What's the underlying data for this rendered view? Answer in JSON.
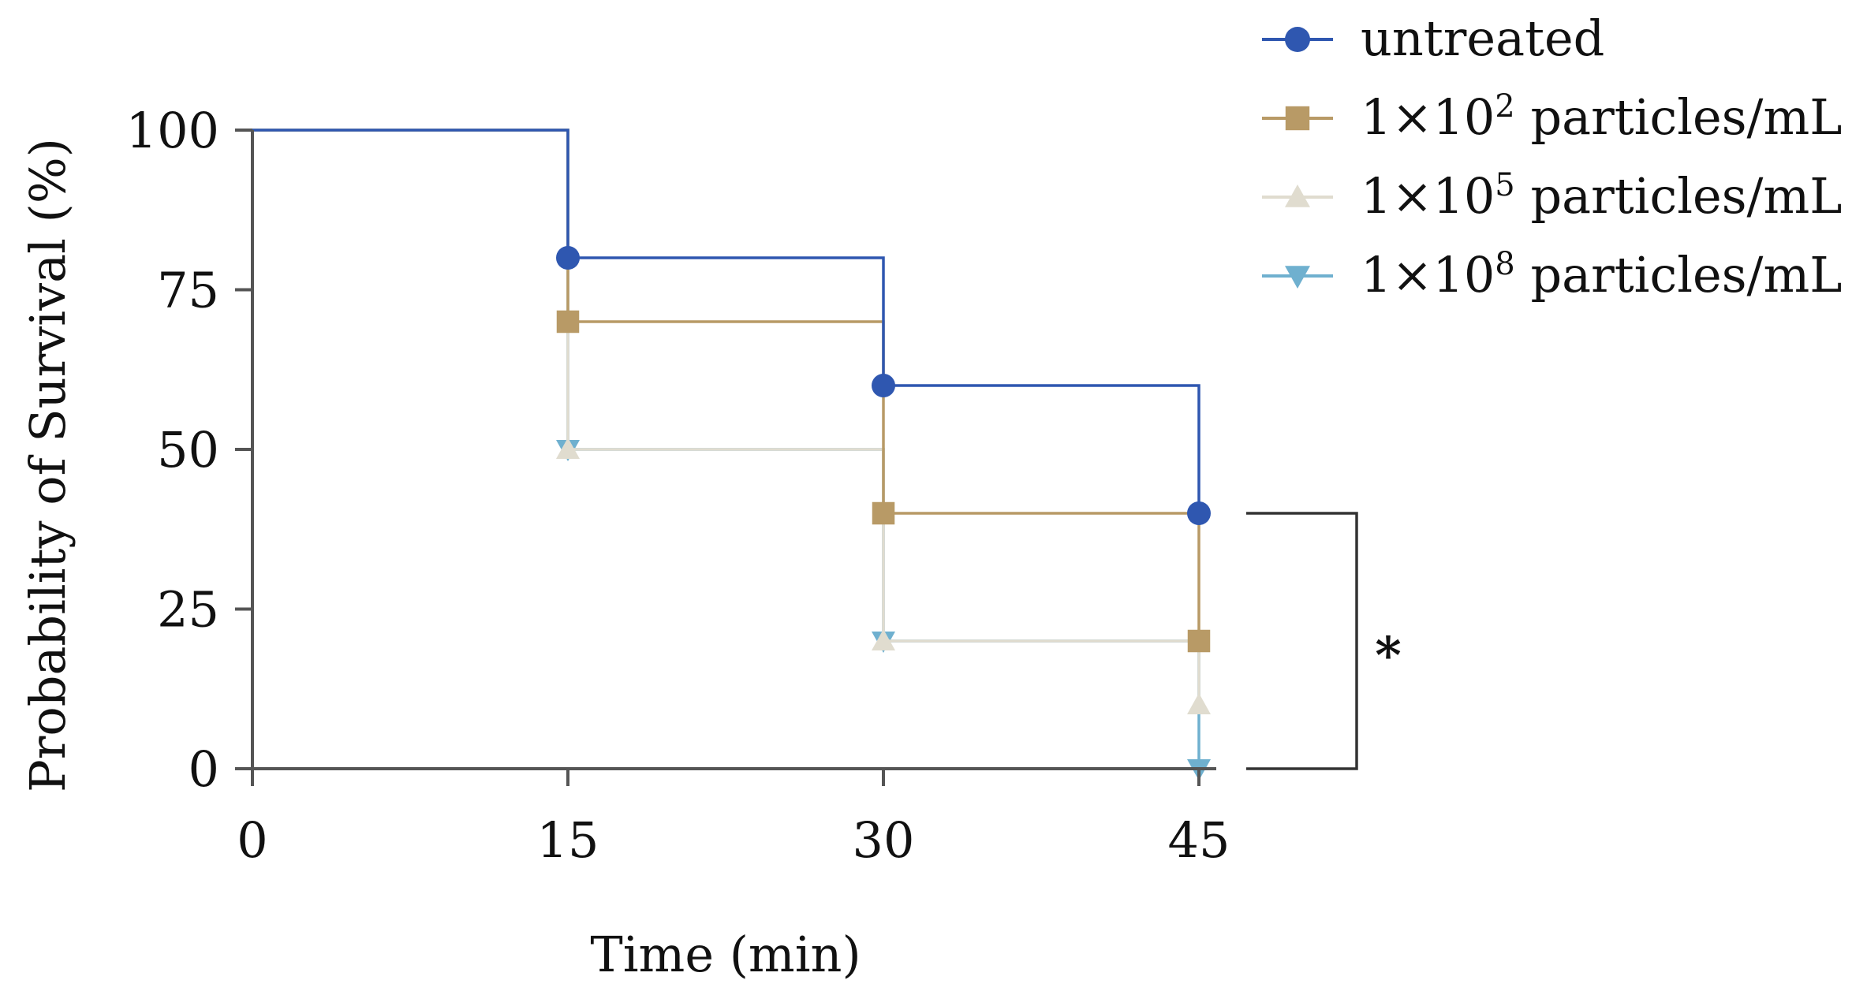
{
  "chart_data": {
    "type": "line",
    "step": true,
    "title": "",
    "xlabel": "Time (min)",
    "ylabel": "Probability of Survival (%)",
    "xlim": [
      0,
      45
    ],
    "ylim": [
      0,
      100
    ],
    "xticks": [
      "0",
      "15",
      "30",
      "45"
    ],
    "yticks": [
      "0",
      "25",
      "50",
      "75",
      "100"
    ],
    "grid": false,
    "legend_position": "top-right",
    "series": [
      {
        "name": "untreated",
        "superscript": "",
        "marker": "circle",
        "color": "#2f57b0",
        "x": [
          0,
          15,
          30,
          45
        ],
        "y": [
          100,
          80,
          60,
          40
        ]
      },
      {
        "name": "1×10",
        "superscript": "2",
        "name_suffix": " particles/mL",
        "marker": "square",
        "color": "#b89a66",
        "x": [
          0,
          15,
          30,
          45
        ],
        "y": [
          100,
          70,
          40,
          20
        ]
      },
      {
        "name": "1×10",
        "superscript": "5",
        "name_suffix": " particles/mL",
        "marker": "triangle-up",
        "color": "#e0dccf",
        "x": [
          0,
          15,
          30,
          45
        ],
        "y": [
          100,
          50,
          20,
          10
        ]
      },
      {
        "name": "1×10",
        "superscript": "8",
        "name_suffix": " particles/mL",
        "marker": "triangle-down",
        "color": "#6fb0cf",
        "x": [
          0,
          15,
          30,
          45
        ],
        "y": [
          100,
          50,
          20,
          0
        ]
      }
    ],
    "annotations": [
      {
        "type": "significance-bracket",
        "label": "*",
        "from_y": 40,
        "to_y": 0
      }
    ]
  }
}
